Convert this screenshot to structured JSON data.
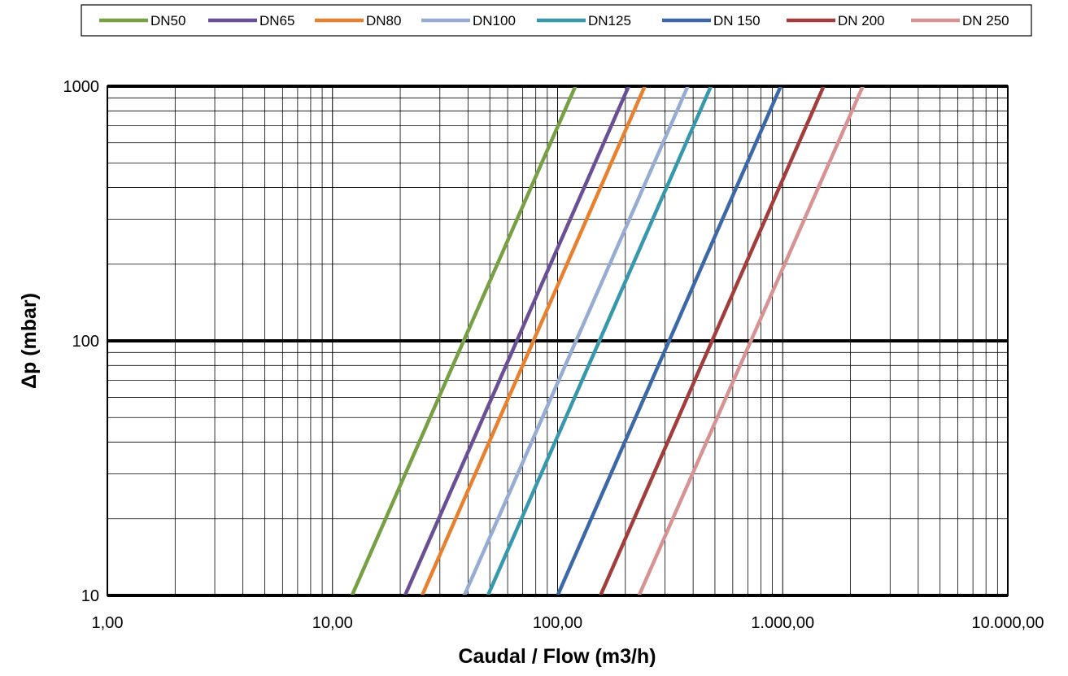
{
  "chart_data": {
    "type": "line",
    "title": "",
    "xlabel": "Caudal  / Flow (m3/h)",
    "ylabel": "Δp (mbar)",
    "x_scale": "log",
    "y_scale": "log",
    "xlim": [
      1,
      10000
    ],
    "ylim": [
      10,
      1000
    ],
    "x_tick_values": [
      1,
      10,
      100,
      1000,
      10000
    ],
    "x_tick_labels": [
      "1,00",
      "10,00",
      "100,00",
      "1.000,00",
      "10.000,00"
    ],
    "y_tick_values": [
      10,
      100,
      1000
    ],
    "y_tick_labels": [
      "10",
      "100",
      "1000"
    ],
    "grid": true,
    "legend_position": "top",
    "series": [
      {
        "name": "DN50",
        "color": "#77a043",
        "x": [
          12.2,
          120
        ],
        "y": [
          10,
          1000
        ]
      },
      {
        "name": "DN65",
        "color": "#6b4f95",
        "x": [
          21,
          207
        ],
        "y": [
          10,
          1000
        ]
      },
      {
        "name": "DN80",
        "color": "#e8812f",
        "x": [
          25,
          244
        ],
        "y": [
          10,
          1000
        ]
      },
      {
        "name": "DN100",
        "color": "#96acd3",
        "x": [
          38.5,
          379
        ],
        "y": [
          10,
          1000
        ]
      },
      {
        "name": "DN125",
        "color": "#3798ab",
        "x": [
          49,
          480
        ],
        "y": [
          10,
          1000
        ]
      },
      {
        "name": "DN 150",
        "color": "#3c68a8",
        "x": [
          100,
          980
        ],
        "y": [
          10,
          1000
        ]
      },
      {
        "name": "DN 200",
        "color": "#a23d3b",
        "x": [
          155,
          1520
        ],
        "y": [
          10,
          1000
        ]
      },
      {
        "name": "DN 250",
        "color": "#d79394",
        "x": [
          230,
          2270
        ],
        "y": [
          10,
          1000
        ]
      }
    ]
  }
}
